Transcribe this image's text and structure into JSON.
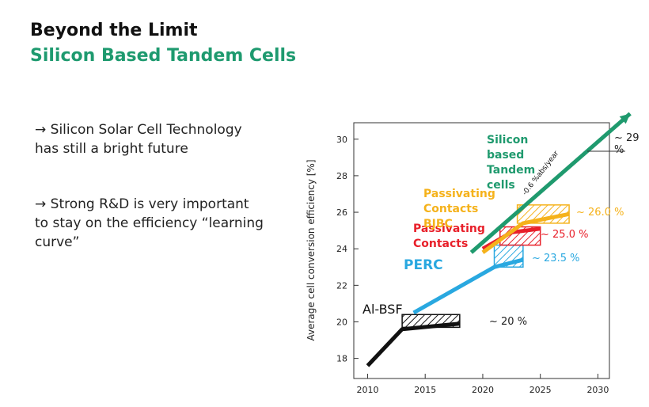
{
  "title": "Beyond the Limit",
  "subtitle": "Silicon Based Tandem Cells",
  "bullets": [
    "→ Silicon Solar Cell Technology has still a bright future",
    "→ Strong R&D is very important to stay on the efficiency “learning curve”"
  ],
  "chart_data": {
    "type": "line",
    "ylabel": "Average cell conversion efficiency [%]",
    "xlim": [
      2008.8,
      2031
    ],
    "xticks": [
      2010,
      2015,
      2020,
      2025,
      2030
    ],
    "ylim": [
      16.9,
      30.9
    ],
    "yticks": [
      18,
      20,
      22,
      24,
      26,
      28,
      30
    ],
    "series": [
      {
        "name": "Al-BSF",
        "color": "#111111",
        "x": [
          2010,
          2013,
          2018
        ],
        "values": [
          17.6,
          19.6,
          19.9
        ],
        "band_x": [
          2013,
          2018
        ],
        "band_y": [
          19.7,
          20.4
        ],
        "label": "~ 20 %"
      },
      {
        "name": "PERC",
        "color": "#29a8e0",
        "x": [
          2014,
          2021,
          2023.5
        ],
        "values": [
          20.5,
          23.0,
          23.4
        ],
        "band_x": [
          2021,
          2023.5
        ],
        "band_y": [
          23.0,
          24.2
        ],
        "label": "~ 23.5 %"
      },
      {
        "name": "Passivating Contacts",
        "color": "#e8202a",
        "x": [
          2020,
          2022.5,
          2025
        ],
        "values": [
          24.0,
          24.9,
          25.1
        ],
        "band_x": [
          2021.5,
          2025
        ],
        "band_y": [
          24.2,
          25.2
        ],
        "label": "~ 25.0 %"
      },
      {
        "name": "Passivating Contacts BJBC",
        "color": "#f5b21b",
        "x": [
          2020,
          2023.5,
          2027.5
        ],
        "values": [
          23.8,
          25.4,
          25.9
        ],
        "band_x": [
          2023,
          2027.5
        ],
        "band_y": [
          25.4,
          26.4
        ],
        "label": "~ 26.0 %"
      },
      {
        "name": "Silicon based Tandem cells",
        "color": "#1f9a6e",
        "x": [
          2019,
          2032.8
        ],
        "values": [
          23.8,
          31.4
        ],
        "label": "~ 29 %",
        "slope_label": "-0.6 %abs/year"
      }
    ]
  }
}
